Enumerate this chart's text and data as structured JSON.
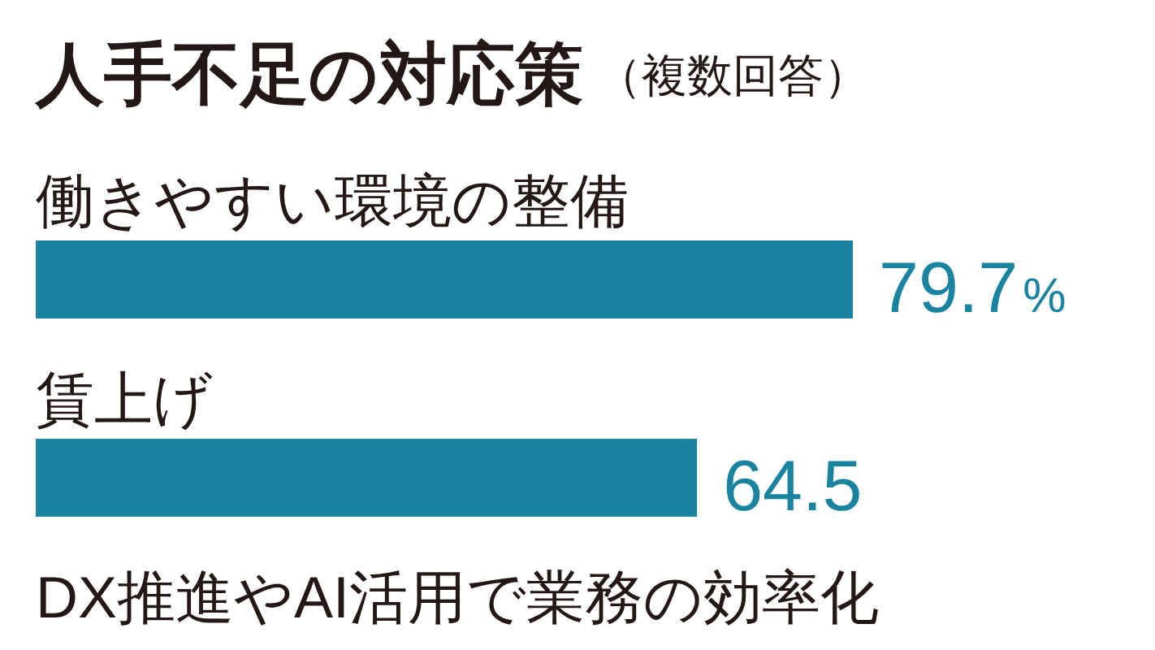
{
  "chart_data": {
    "type": "bar",
    "orientation": "horizontal",
    "title": "人手不足の対応策",
    "subtitle": "（複数回答）",
    "categories": [
      "働きやすい環境の整備",
      "賃上げ",
      "DX推進やAI活用で業務の効率化"
    ],
    "values": [
      79.7,
      64.5,
      null
    ],
    "value_labels": [
      "79.7%",
      "64.5",
      null
    ],
    "color": "#1a84a0"
  }
}
